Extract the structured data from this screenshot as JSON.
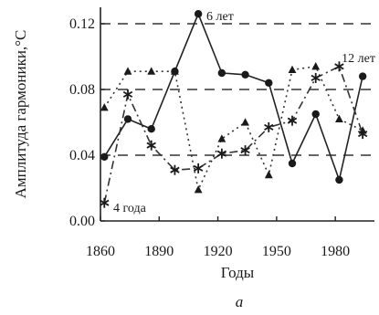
{
  "chart_data": {
    "type": "line",
    "xlabel": "Годы",
    "ylabel": "Амплитуда гармоники,°C",
    "panel_label": "a",
    "xlim": [
      1860,
      2000
    ],
    "ylim": [
      0,
      0.13
    ],
    "xticks": [
      1860,
      1890,
      1920,
      1950,
      1980
    ],
    "yticks": [
      0.0,
      0.04,
      0.08,
      0.12
    ],
    "ytick_labels": [
      "0.00",
      "0.04",
      "0.08",
      "0.12"
    ],
    "grid": "dashed horizontal lines at 0.04, 0.08, 0.12",
    "legend": "none; series labelled directly on the plot",
    "series": [
      {
        "name": "6 лет",
        "style": "solid line, filled circle markers",
        "color": "#222222",
        "x": [
          1862,
          1874,
          1886,
          1898,
          1910,
          1922,
          1934,
          1946,
          1958,
          1970,
          1982,
          1994
        ],
        "y": [
          0.039,
          0.062,
          0.056,
          0.091,
          0.126,
          0.09,
          0.089,
          0.084,
          0.035,
          0.065,
          0.025,
          0.088
        ]
      },
      {
        "name": "12 лет",
        "style": "dotted line, triangle markers",
        "color": "#333333",
        "x": [
          1862,
          1874,
          1886,
          1898,
          1910,
          1922,
          1934,
          1946,
          1958,
          1970,
          1982,
          1994
        ],
        "y": [
          0.069,
          0.091,
          0.091,
          0.091,
          0.019,
          0.05,
          0.06,
          0.028,
          0.092,
          0.094,
          0.062,
          0.055
        ]
      },
      {
        "name": "4 года",
        "style": "dash-dot line, asterisk markers",
        "color": "#333333",
        "x": [
          1862,
          1874,
          1886,
          1898,
          1910,
          1922,
          1934,
          1946,
          1958,
          1970,
          1982,
          1994
        ],
        "y": [
          0.011,
          0.077,
          0.046,
          0.031,
          0.032,
          0.041,
          0.043,
          0.057,
          0.061,
          0.087,
          0.094,
          0.053
        ]
      }
    ]
  }
}
